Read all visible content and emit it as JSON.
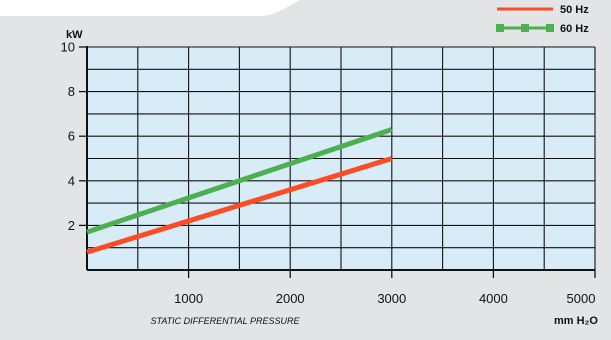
{
  "chart_data": {
    "type": "line",
    "ylabel": "kW",
    "xlabel": "STATIC DIFFERENTIAL PRESSURE",
    "xunit": "mm H₂O",
    "xlim": [
      0,
      5000
    ],
    "ylim": [
      0,
      10
    ],
    "x_ticks": [
      1000,
      2000,
      3000,
      4000,
      5000
    ],
    "y_ticks": [
      2,
      4,
      6,
      8,
      10
    ],
    "grid": true,
    "legend_position": "top-right",
    "series": [
      {
        "name": "50 Hz",
        "color": "#ff4b23",
        "marker": "none",
        "x": [
          0,
          3000
        ],
        "y": [
          0.8,
          5.0
        ]
      },
      {
        "name": "60 Hz",
        "color": "#4caf50",
        "marker": "square",
        "x": [
          0,
          3000
        ],
        "y": [
          1.7,
          6.3
        ]
      }
    ]
  },
  "colors": {
    "background": "#e3e4e5",
    "plot_fill": "#d8ecf8",
    "grid": "#111111",
    "header_tab": "#ffffff"
  }
}
